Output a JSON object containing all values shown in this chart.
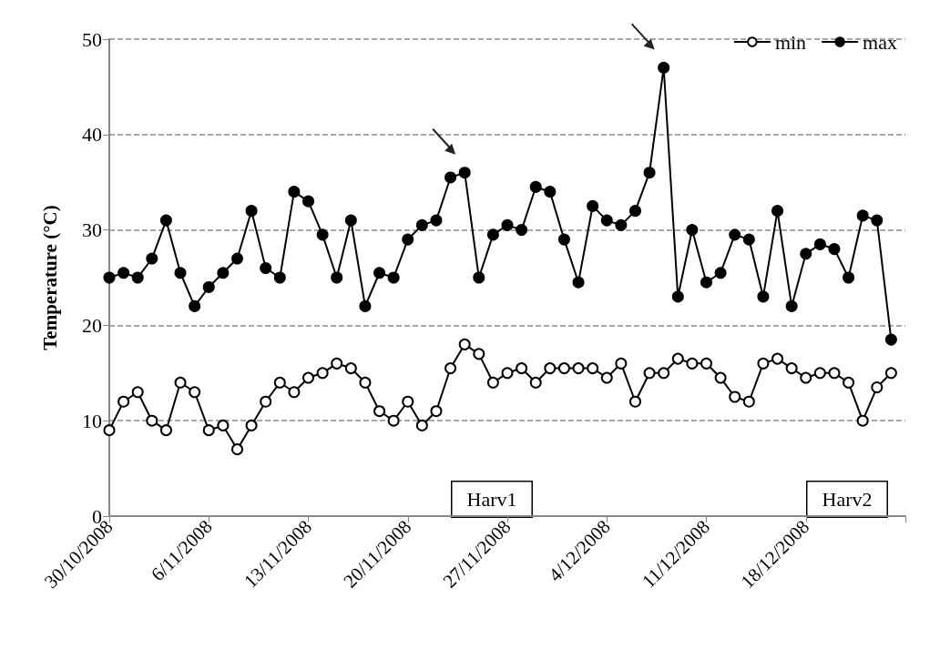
{
  "chart_data": {
    "type": "line",
    "ylabel": "Temperature (°C)",
    "x": [
      "2008-10-30",
      "2008-10-31",
      "2008-11-01",
      "2008-11-02",
      "2008-11-03",
      "2008-11-04",
      "2008-11-05",
      "2008-11-06",
      "2008-11-07",
      "2008-11-08",
      "2008-11-09",
      "2008-11-10",
      "2008-11-11",
      "2008-11-12",
      "2008-11-13",
      "2008-11-14",
      "2008-11-15",
      "2008-11-16",
      "2008-11-17",
      "2008-11-18",
      "2008-11-19",
      "2008-11-20",
      "2008-11-21",
      "2008-11-22",
      "2008-11-23",
      "2008-11-24",
      "2008-11-25",
      "2008-11-26",
      "2008-11-27",
      "2008-11-28",
      "2008-11-29",
      "2008-11-30",
      "2008-12-01",
      "2008-12-02",
      "2008-12-03",
      "2008-12-04",
      "2008-12-05",
      "2008-12-06",
      "2008-12-07",
      "2008-12-08",
      "2008-12-09",
      "2008-12-10",
      "2008-12-11",
      "2008-12-12",
      "2008-12-13",
      "2008-12-14",
      "2008-12-15",
      "2008-12-16",
      "2008-12-17",
      "2008-12-18",
      "2008-12-19",
      "2008-12-20",
      "2008-12-21",
      "2008-12-22",
      "2008-12-23",
      "2008-12-24"
    ],
    "series": [
      {
        "name": "min",
        "color": "#000000",
        "values": [
          9,
          12,
          13,
          10,
          9,
          14,
          13,
          9,
          9.5,
          7,
          9.5,
          12,
          14,
          13,
          14.5,
          15,
          16,
          15.5,
          14,
          11,
          10,
          12,
          9.5,
          11,
          15.5,
          18,
          17,
          14,
          15,
          15.5,
          14,
          15.5,
          15.5,
          15.5,
          15.5,
          14.5,
          16,
          12,
          15,
          15,
          16.5,
          16,
          16,
          14.5,
          12.5,
          12,
          16,
          16.5,
          15.5,
          14.5,
          15,
          15,
          14,
          10,
          13.5,
          15
        ]
      },
      {
        "name": "max",
        "color": "#000000",
        "values": [
          25,
          25.5,
          25,
          27,
          31,
          25.5,
          22,
          24,
          25.5,
          27,
          32,
          26,
          25,
          34,
          33,
          29.5,
          25,
          31,
          22,
          25.5,
          25,
          29,
          30.5,
          31,
          35.5,
          36,
          25,
          29.5,
          30.5,
          30,
          34.5,
          34,
          29,
          24.5,
          32.5,
          31,
          30.5,
          32,
          36,
          47,
          23,
          30,
          24.5,
          25.5,
          29.5,
          29,
          23,
          32,
          22,
          27.5,
          28.5,
          28,
          25,
          31.5,
          31,
          18.5
        ]
      }
    ],
    "xlim": [
      "2008-10-30",
      "2008-12-25"
    ],
    "xticks": [
      {
        "value": "2008-10-30",
        "label": "30/10/2008"
      },
      {
        "value": "2008-11-06",
        "label": "6/11/2008"
      },
      {
        "value": "2008-11-13",
        "label": "13/11/2008"
      },
      {
        "value": "2008-11-20",
        "label": "20/11/2008"
      },
      {
        "value": "2008-11-27",
        "label": "27/11/2008"
      },
      {
        "value": "2008-12-04",
        "label": "4/12/2008"
      },
      {
        "value": "2008-12-11",
        "label": "11/12/2008"
      },
      {
        "value": "2008-12-18",
        "label": "18/12/2008"
      },
      {
        "value": "2008-12-25",
        "label": null
      }
    ],
    "ylim": [
      0,
      50
    ],
    "yticks": [
      0,
      10,
      20,
      30,
      40,
      50
    ],
    "grid": "y",
    "legend": "top right",
    "marker": "circle",
    "line_style": "solid",
    "annotations": [
      "Harv1",
      "Harv2"
    ]
  }
}
